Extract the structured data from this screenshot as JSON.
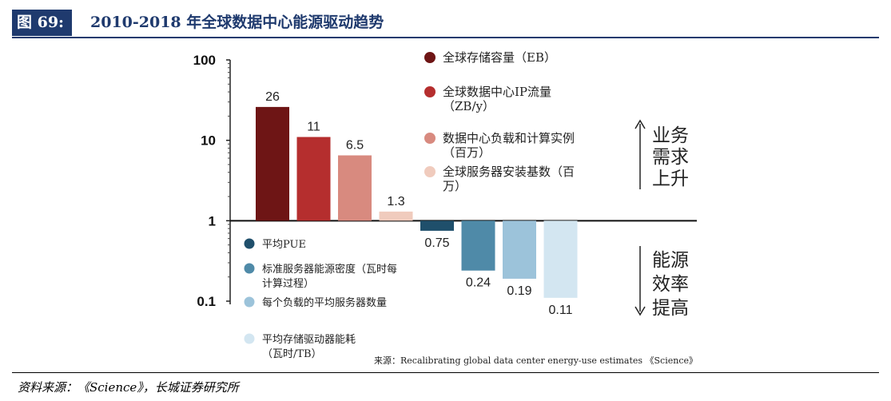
{
  "header": {
    "figure_number": "图 69:",
    "title": "2010-2018 年全球数据中心能源驱动趋势"
  },
  "footer": {
    "source": "资料来源：《Science》，长城证券研究所"
  },
  "chart_data": {
    "type": "bar",
    "scale": "log",
    "ylim": [
      0.1,
      100
    ],
    "y_ticks": [
      "100",
      "10",
      "1",
      "0.1"
    ],
    "grid": false,
    "legend_placement_up": "top-right",
    "legend_placement_down": "bottom-left",
    "series": [
      {
        "name": "全球存储容量（EB）",
        "value": 26,
        "label": "26",
        "color": "#6e1515",
        "group": "up"
      },
      {
        "name": "全球数据中心IP流量（ZB/y）",
        "value": 11,
        "label": "11",
        "color": "#b52e2e",
        "group": "up"
      },
      {
        "name": "数据中心负载和计算实例（百万）",
        "value": 6.5,
        "label": "6.5",
        "color": "#d88a7f",
        "group": "up"
      },
      {
        "name": "全球服务器安装基数（百万）",
        "value": 1.3,
        "label": "1.3",
        "color": "#f0cbbd",
        "group": "up"
      },
      {
        "name": "平均PUE",
        "value": 0.75,
        "label": "0.75",
        "color": "#1f4f6b",
        "group": "down"
      },
      {
        "name": "标准服务器能源密度（瓦时每计算过程）",
        "value": 0.24,
        "label": "0.24",
        "color": "#4f8aa8",
        "group": "down"
      },
      {
        "name": "每个负载的平均服务器数量",
        "value": 0.19,
        "label": "0.19",
        "color": "#9cc3da",
        "group": "down"
      },
      {
        "name": "平均存储驱动器能耗（瓦时/TB）",
        "value": 0.11,
        "label": "0.11",
        "color": "#d3e6f1",
        "group": "down"
      }
    ],
    "annotations": {
      "up_arrow_text": "业务需求上升",
      "down_arrow_text": "能源效率提高",
      "source_note": "来源：Recalibrating global data center energy-use estimates 《Science》"
    }
  }
}
